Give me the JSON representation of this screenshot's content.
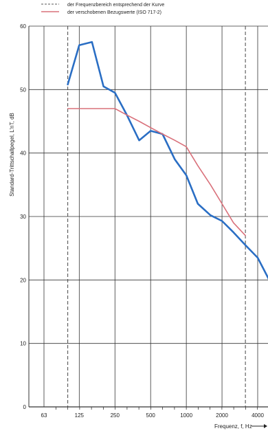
{
  "chart_data": {
    "type": "line",
    "title": "",
    "xlabel": "Frequenz, f, Hz",
    "ylabel": "Standard-Trittschallpegel, L'nT, dB",
    "x_scale": "log",
    "x_ticks": [
      "63",
      "125",
      "250",
      "500",
      "1000",
      "2000",
      "4000"
    ],
    "x_tick_values": [
      63,
      125,
      250,
      500,
      1000,
      2000,
      4000
    ],
    "ylim": [
      0,
      60
    ],
    "y_ticks": [
      "0",
      "10",
      "20",
      "30",
      "40",
      "50",
      "60"
    ],
    "y_tick_values": [
      0,
      10,
      20,
      30,
      40,
      50,
      60
    ],
    "grid": true,
    "legend_position": "top-left",
    "legend": [
      {
        "text": "der Frequenzbereich entsprechend der Kurve",
        "style": "dashed"
      },
      {
        "text": "der verschobenen Bezugswerte (ISO 717-2)",
        "style": "solid"
      }
    ],
    "frequency_range_markers": [
      100,
      3150
    ],
    "series": [
      {
        "color": "#2a6ec4",
        "x": [
          100,
          125,
          160,
          200,
          250,
          315,
          400,
          500,
          630,
          800,
          1000,
          1250,
          1600,
          2000,
          2500,
          3150,
          4000,
          5000
        ],
        "y": [
          50.8,
          57,
          57.5,
          50.5,
          49.5,
          46,
          42,
          43.5,
          43,
          39,
          36.5,
          32,
          30.2,
          29.3,
          27.5,
          25.5,
          23.5,
          20
        ]
      },
      {
        "color": "#d9707a",
        "x": [
          100,
          125,
          160,
          200,
          250,
          315,
          400,
          500,
          630,
          800,
          1000,
          1250,
          1600,
          2000,
          2500,
          3150
        ],
        "y": [
          47,
          47,
          47,
          47,
          47,
          46,
          45,
          44,
          43,
          42,
          41,
          38,
          35,
          32,
          29,
          27
        ]
      }
    ]
  }
}
